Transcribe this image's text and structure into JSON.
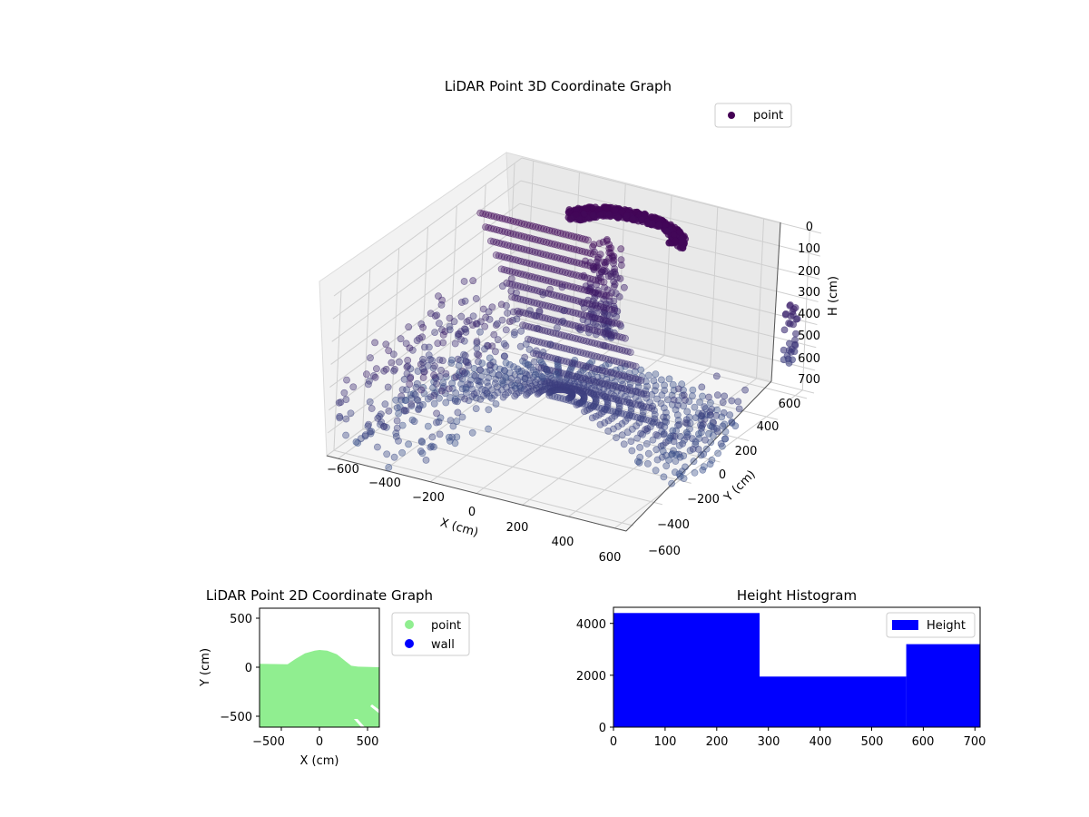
{
  "chart_data": [
    {
      "type": "scatter",
      "title": "LiDAR Point 3D Coordinate Graph",
      "xlabel": "X (cm)",
      "ylabel": "Y (cm)",
      "zlabel": "H (cm)",
      "xlim": [
        -650,
        650
      ],
      "ylim": [
        -650,
        650
      ],
      "zlim": [
        0,
        700
      ],
      "z_axis_inverted": true,
      "x_ticks": [
        "−600",
        "−400",
        "−200",
        "0",
        "200",
        "400",
        "600"
      ],
      "y_ticks": [
        "−600",
        "−400",
        "−200",
        "0",
        "200",
        "400",
        "600"
      ],
      "z_ticks": [
        "0",
        "100",
        "200",
        "300",
        "400",
        "500",
        "600",
        "700"
      ],
      "legend": {
        "position": "top-right",
        "entries": [
          {
            "label": "point",
            "color": "#440154"
          }
        ]
      },
      "colormap": "viridis",
      "grid": true
    },
    {
      "type": "scatter",
      "title": "LiDAR Point 2D Coordinate Graph",
      "xlabel": "X (cm)",
      "ylabel": "Y (cm)",
      "xlim": [
        -620,
        620
      ],
      "ylim": [
        -620,
        620
      ],
      "x_ticks": [
        "−500",
        "0",
        "500"
      ],
      "y_ticks": [
        "500",
        "0",
        "−500"
      ],
      "legend": {
        "position": "outside-right",
        "entries": [
          {
            "label": "point",
            "color": "#90ee90"
          },
          {
            "label": "wall",
            "color": "#0000ff"
          }
        ]
      },
      "regions": [
        {
          "series": "point",
          "boundary_top": [
            [
              -620,
              40
            ],
            [
              -330,
              35
            ],
            [
              -250,
              90
            ],
            [
              -150,
              150
            ],
            [
              -50,
              178
            ],
            [
              0,
              185
            ],
            [
              80,
              178
            ],
            [
              180,
              140
            ],
            [
              280,
              60
            ],
            [
              330,
              20
            ],
            [
              400,
              10
            ],
            [
              620,
              5
            ]
          ],
          "boundary_bottom_y": -620
        }
      ]
    },
    {
      "type": "bar",
      "title": "Height Histogram",
      "legend": {
        "position": "top-right",
        "entries": [
          {
            "label": "Height",
            "color": "#0000ff"
          }
        ]
      },
      "xlim": [
        0,
        710
      ],
      "ylim": [
        0,
        4620
      ],
      "x_ticks": [
        "0",
        "100",
        "200",
        "300",
        "400",
        "500",
        "600",
        "700"
      ],
      "y_ticks": [
        "0",
        "2000",
        "4000"
      ],
      "bins": [
        {
          "start": 0,
          "end": 283,
          "count": 4400
        },
        {
          "start": 283,
          "end": 567,
          "count": 1950
        },
        {
          "start": 567,
          "end": 710,
          "count": 3200
        }
      ],
      "color": "#0000ff"
    }
  ]
}
